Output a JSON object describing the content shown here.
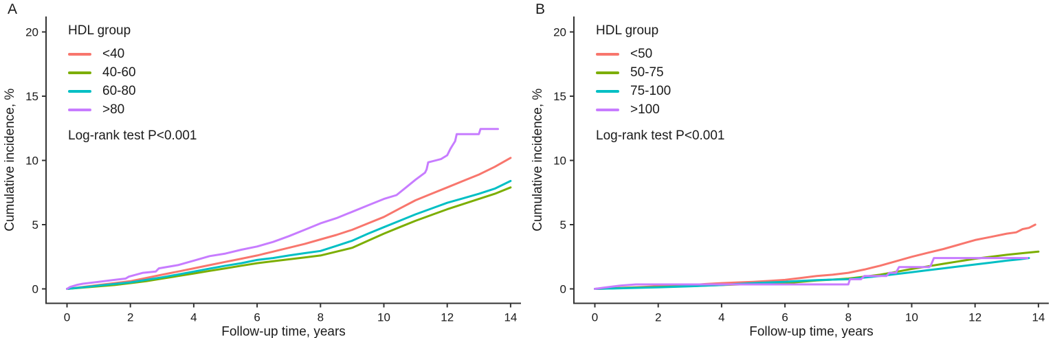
{
  "figure": {
    "background": "#ffffff",
    "axis_color": "#333333",
    "text_color": "#1a1a1a"
  },
  "chart_data": [
    {
      "type": "line",
      "panel_label": "A",
      "xlabel": "Follow-up time, years",
      "ylabel": "Cumulative incidence, %",
      "xlim": [
        0,
        14
      ],
      "ylim": [
        0,
        20
      ],
      "xticks": [
        0,
        2,
        4,
        6,
        8,
        10,
        12,
        14
      ],
      "yticks": [
        0,
        5,
        10,
        15,
        20
      ],
      "grid": false,
      "legend_title": "HDL group",
      "legend_position": "inside-top-left",
      "annotation": "Log-rank test P<0.001",
      "series": [
        {
          "name": "<40",
          "color": "#F8766D",
          "points": [
            [
              0,
              0
            ],
            [
              0.5,
              0.15
            ],
            [
              1,
              0.3
            ],
            [
              1.5,
              0.45
            ],
            [
              2,
              0.6
            ],
            [
              2.5,
              0.85
            ],
            [
              3,
              1.1
            ],
            [
              3.5,
              1.35
            ],
            [
              4,
              1.6
            ],
            [
              4.5,
              1.85
            ],
            [
              5,
              2.1
            ],
            [
              5.5,
              2.35
            ],
            [
              6,
              2.6
            ],
            [
              6.5,
              2.9
            ],
            [
              7,
              3.2
            ],
            [
              7.5,
              3.5
            ],
            [
              8,
              3.85
            ],
            [
              8.5,
              4.2
            ],
            [
              9,
              4.6
            ],
            [
              9.5,
              5.1
            ],
            [
              10,
              5.6
            ],
            [
              10.5,
              6.25
            ],
            [
              11,
              6.9
            ],
            [
              11.5,
              7.4
            ],
            [
              12,
              7.9
            ],
            [
              12.5,
              8.4
            ],
            [
              13,
              8.9
            ],
            [
              13.5,
              9.5
            ],
            [
              14,
              10.2
            ]
          ]
        },
        {
          "name": "40-60",
          "color": "#7CAE00",
          "points": [
            [
              0,
              0
            ],
            [
              0.5,
              0.1
            ],
            [
              1,
              0.2
            ],
            [
              1.5,
              0.3
            ],
            [
              2,
              0.45
            ],
            [
              2.5,
              0.6
            ],
            [
              3,
              0.8
            ],
            [
              3.5,
              1.0
            ],
            [
              4,
              1.2
            ],
            [
              4.5,
              1.4
            ],
            [
              5,
              1.6
            ],
            [
              5.5,
              1.8
            ],
            [
              6,
              2.0
            ],
            [
              6.5,
              2.15
            ],
            [
              7,
              2.3
            ],
            [
              7.5,
              2.45
            ],
            [
              8,
              2.6
            ],
            [
              8.5,
              2.9
            ],
            [
              9,
              3.2
            ],
            [
              9.5,
              3.75
            ],
            [
              10,
              4.3
            ],
            [
              10.5,
              4.8
            ],
            [
              11,
              5.3
            ],
            [
              11.5,
              5.75
            ],
            [
              12,
              6.2
            ],
            [
              12.5,
              6.6
            ],
            [
              13,
              7.0
            ],
            [
              13.5,
              7.4
            ],
            [
              14,
              7.9
            ]
          ]
        },
        {
          "name": "60-80",
          "color": "#00BFC4",
          "points": [
            [
              0,
              0
            ],
            [
              0.5,
              0.12
            ],
            [
              1,
              0.25
            ],
            [
              1.5,
              0.38
            ],
            [
              2,
              0.5
            ],
            [
              2.5,
              0.7
            ],
            [
              3,
              0.9
            ],
            [
              3.5,
              1.12
            ],
            [
              4,
              1.35
            ],
            [
              4.5,
              1.58
            ],
            [
              5,
              1.8
            ],
            [
              5.5,
              2.0
            ],
            [
              6,
              2.25
            ],
            [
              6.5,
              2.4
            ],
            [
              7,
              2.6
            ],
            [
              7.5,
              2.78
            ],
            [
              8,
              2.95
            ],
            [
              8.5,
              3.35
            ],
            [
              9,
              3.75
            ],
            [
              9.5,
              4.3
            ],
            [
              10,
              4.8
            ],
            [
              10.5,
              5.3
            ],
            [
              11,
              5.8
            ],
            [
              11.5,
              6.25
            ],
            [
              12,
              6.7
            ],
            [
              12.5,
              7.05
            ],
            [
              13,
              7.4
            ],
            [
              13.5,
              7.8
            ],
            [
              14,
              8.4
            ]
          ]
        },
        {
          "name": ">80",
          "color": "#C77CFF",
          "points": [
            [
              0,
              0
            ],
            [
              0.1,
              0.15
            ],
            [
              0.3,
              0.3
            ],
            [
              0.5,
              0.4
            ],
            [
              1,
              0.55
            ],
            [
              1.5,
              0.7
            ],
            [
              1.85,
              0.8
            ],
            [
              1.95,
              0.95
            ],
            [
              2.4,
              1.25
            ],
            [
              2.8,
              1.35
            ],
            [
              2.9,
              1.6
            ],
            [
              3.5,
              1.85
            ],
            [
              4,
              2.2
            ],
            [
              4.5,
              2.55
            ],
            [
              5,
              2.75
            ],
            [
              5.5,
              3.05
            ],
            [
              6,
              3.3
            ],
            [
              6.5,
              3.65
            ],
            [
              7,
              4.1
            ],
            [
              7.5,
              4.6
            ],
            [
              8,
              5.1
            ],
            [
              8.5,
              5.5
            ],
            [
              9,
              6.0
            ],
            [
              9.5,
              6.5
            ],
            [
              10,
              7.0
            ],
            [
              10.4,
              7.3
            ],
            [
              10.7,
              7.9
            ],
            [
              11,
              8.5
            ],
            [
              11.3,
              9.05
            ],
            [
              11.35,
              9.3
            ],
            [
              11.4,
              9.85
            ],
            [
              11.8,
              10.1
            ],
            [
              12,
              10.4
            ],
            [
              12.1,
              10.9
            ],
            [
              12.15,
              11.1
            ],
            [
              12.25,
              11.5
            ],
            [
              12.3,
              12.05
            ],
            [
              13.0,
              12.05
            ],
            [
              13.05,
              12.45
            ],
            [
              13.6,
              12.45
            ]
          ]
        }
      ]
    },
    {
      "type": "line",
      "panel_label": "B",
      "xlabel": "Follow-up time, years",
      "ylabel": "Cumulative incidence, %",
      "xlim": [
        0,
        14
      ],
      "ylim": [
        0,
        20
      ],
      "xticks": [
        0,
        2,
        4,
        6,
        8,
        10,
        12,
        14
      ],
      "yticks": [
        0,
        5,
        10,
        15,
        20
      ],
      "grid": false,
      "legend_title": "HDL group",
      "legend_position": "inside-top-left",
      "annotation": "Log-rank test P<0.001",
      "series": [
        {
          "name": "<50",
          "color": "#F8766D",
          "points": [
            [
              0,
              0
            ],
            [
              0.5,
              0.05
            ],
            [
              1,
              0.1
            ],
            [
              1.5,
              0.15
            ],
            [
              2,
              0.2
            ],
            [
              2.5,
              0.25
            ],
            [
              3,
              0.3
            ],
            [
              3.5,
              0.38
            ],
            [
              4,
              0.45
            ],
            [
              4.5,
              0.5
            ],
            [
              5,
              0.55
            ],
            [
              5.5,
              0.62
            ],
            [
              6,
              0.7
            ],
            [
              6.5,
              0.85
            ],
            [
              7,
              1.0
            ],
            [
              7.5,
              1.1
            ],
            [
              8,
              1.25
            ],
            [
              8.5,
              1.5
            ],
            [
              9,
              1.8
            ],
            [
              9.5,
              2.15
            ],
            [
              10,
              2.5
            ],
            [
              10.5,
              2.8
            ],
            [
              11,
              3.1
            ],
            [
              11.5,
              3.45
            ],
            [
              12,
              3.8
            ],
            [
              12.5,
              4.05
            ],
            [
              13,
              4.3
            ],
            [
              13.3,
              4.4
            ],
            [
              13.5,
              4.65
            ],
            [
              13.7,
              4.75
            ],
            [
              13.9,
              5.0
            ]
          ]
        },
        {
          "name": "50-75",
          "color": "#7CAE00",
          "points": [
            [
              0,
              0
            ],
            [
              1,
              0.08
            ],
            [
              2,
              0.15
            ],
            [
              3,
              0.22
            ],
            [
              4,
              0.3
            ],
            [
              5,
              0.38
            ],
            [
              6,
              0.45
            ],
            [
              6.5,
              0.55
            ],
            [
              7,
              0.65
            ],
            [
              7.5,
              0.72
            ],
            [
              8,
              0.8
            ],
            [
              8.5,
              0.95
            ],
            [
              9,
              1.1
            ],
            [
              9.5,
              1.32
            ],
            [
              10,
              1.55
            ],
            [
              10.5,
              1.75
            ],
            [
              11,
              1.95
            ],
            [
              11.5,
              2.15
            ],
            [
              12,
              2.35
            ],
            [
              12.5,
              2.5
            ],
            [
              13,
              2.65
            ],
            [
              13.5,
              2.78
            ],
            [
              14,
              2.9
            ]
          ]
        },
        {
          "name": "75-100",
          "color": "#00BFC4",
          "points": [
            [
              0,
              0
            ],
            [
              1,
              0.06
            ],
            [
              2,
              0.12
            ],
            [
              3,
              0.2
            ],
            [
              4,
              0.3
            ],
            [
              4.5,
              0.38
            ],
            [
              5,
              0.45
            ],
            [
              5.5,
              0.5
            ],
            [
              6,
              0.55
            ],
            [
              6.5,
              0.62
            ],
            [
              7,
              0.68
            ],
            [
              7.5,
              0.72
            ],
            [
              8,
              0.75
            ],
            [
              8.5,
              0.88
            ],
            [
              9,
              1.0
            ],
            [
              9.5,
              1.15
            ],
            [
              10,
              1.3
            ],
            [
              10.5,
              1.45
            ],
            [
              11,
              1.6
            ],
            [
              11.5,
              1.75
            ],
            [
              12,
              1.9
            ],
            [
              12.5,
              2.05
            ],
            [
              13,
              2.2
            ],
            [
              13.4,
              2.3
            ],
            [
              13.7,
              2.4
            ]
          ]
        },
        {
          "name": ">100",
          "color": "#C77CFF",
          "points": [
            [
              0,
              0
            ],
            [
              0.3,
              0.1
            ],
            [
              0.8,
              0.25
            ],
            [
              1.3,
              0.35
            ],
            [
              8.0,
              0.35
            ],
            [
              8.05,
              0.75
            ],
            [
              8.4,
              0.75
            ],
            [
              8.5,
              1.0
            ],
            [
              9.2,
              1.0
            ],
            [
              9.3,
              1.25
            ],
            [
              9.5,
              1.25
            ],
            [
              9.6,
              1.7
            ],
            [
              10.55,
              1.7
            ],
            [
              10.6,
              1.8
            ],
            [
              10.7,
              2.4
            ],
            [
              13.65,
              2.4
            ]
          ]
        }
      ]
    }
  ]
}
